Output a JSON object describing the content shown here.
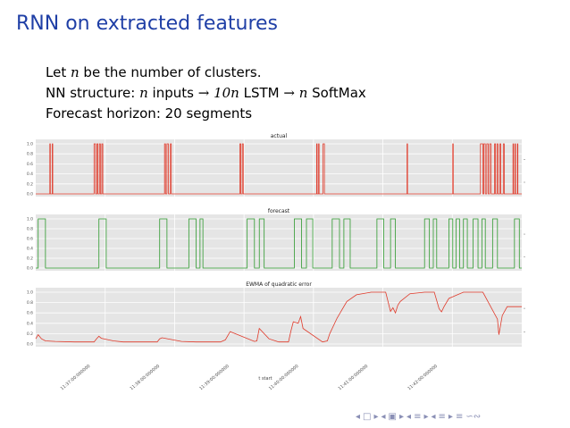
{
  "slide": {
    "title": "RNN on extracted features",
    "bullets": {
      "line1": {
        "pre": "Let ",
        "var": "n",
        "post": " be the number of clusters."
      },
      "line2": {
        "pre": "NN structure: ",
        "v1": "n",
        "t1": " inputs ",
        "arrow1": "→",
        "v2": "10n",
        "t2": " LSTM ",
        "arrow2": "→",
        "v3": "n",
        "t3": " SoftMax"
      },
      "line3": "Forecast horizon: 20 segments"
    }
  },
  "colors": {
    "title": "#1f3fa6",
    "actual": "#e03a2a",
    "forecast": "#2e9a2e",
    "ewma": "#e03a2a",
    "plot_bg": "#e5e5e5",
    "grid": "#ffffff"
  },
  "chart_data": [
    {
      "type": "line",
      "title": "actual",
      "ylim": [
        0,
        1
      ],
      "yticks": [
        "1.0",
        "0.8",
        "0.6",
        "0.4",
        "0.2",
        "0.0"
      ],
      "grid": true,
      "series": [
        {
          "step_segments": [
            [
              0.029,
              0.03
            ],
            [
              0.034,
              0.035
            ],
            [
              0.12,
              0.123
            ],
            [
              0.126,
              0.128
            ],
            [
              0.131,
              0.133
            ],
            [
              0.136,
              0.138
            ],
            [
              0.265,
              0.267
            ],
            [
              0.27,
              0.273
            ],
            [
              0.277,
              0.279
            ],
            [
              0.42,
              0.422
            ],
            [
              0.425,
              0.427
            ],
            [
              0.578,
              0.579
            ],
            [
              0.582,
              0.583
            ],
            [
              0.591,
              0.594
            ],
            [
              0.764,
              0.765
            ],
            [
              0.858,
              0.859
            ],
            [
              0.915,
              0.92
            ],
            [
              0.922,
              0.925
            ],
            [
              0.928,
              0.931
            ],
            [
              0.934,
              0.937
            ],
            [
              0.944,
              0.946
            ],
            [
              0.949,
              0.951
            ],
            [
              0.955,
              0.957
            ],
            [
              0.962,
              0.964
            ],
            [
              0.982,
              0.983
            ],
            [
              0.986,
              0.987
            ],
            [
              0.991,
              0.992
            ]
          ]
        }
      ]
    },
    {
      "type": "line",
      "title": "forecast",
      "ylim": [
        0,
        1
      ],
      "yticks": [
        "1.0",
        "0.8",
        "0.6",
        "0.4",
        "0.2",
        "0.0"
      ],
      "grid": true,
      "series": [
        {
          "step_segments": [
            [
              0.005,
              0.02
            ],
            [
              0.13,
              0.145
            ],
            [
              0.255,
              0.27
            ],
            [
              0.315,
              0.33
            ],
            [
              0.338,
              0.344
            ],
            [
              0.435,
              0.45
            ],
            [
              0.46,
              0.47
            ],
            [
              0.532,
              0.547
            ],
            [
              0.557,
              0.57
            ],
            [
              0.61,
              0.625
            ],
            [
              0.634,
              0.647
            ],
            [
              0.702,
              0.716
            ],
            [
              0.73,
              0.74
            ],
            [
              0.8,
              0.81
            ],
            [
              0.818,
              0.825
            ],
            [
              0.85,
              0.858
            ],
            [
              0.865,
              0.872
            ],
            [
              0.88,
              0.888
            ],
            [
              0.9,
              0.91
            ],
            [
              0.918,
              0.925
            ],
            [
              0.94,
              0.95
            ],
            [
              0.985,
              0.995
            ]
          ]
        }
      ]
    },
    {
      "type": "line",
      "title": "EWMA of quadratic error",
      "ylim": [
        0,
        1
      ],
      "yticks": [
        "1.0",
        "0.8",
        "0.6",
        "0.4",
        "0.2",
        "0.0"
      ],
      "grid": true,
      "xlabel": "t start",
      "xticks": [
        "11:37:00:000000",
        "11:38:00:000000",
        "11:39:00:000000",
        "11:40:00:000000",
        "11:41:00:000000",
        "11:42:00:000000"
      ],
      "series": [
        {
          "x": [
            0.0,
            0.005,
            0.012,
            0.02,
            0.04,
            0.08,
            0.12,
            0.125,
            0.13,
            0.135,
            0.16,
            0.18,
            0.2,
            0.25,
            0.255,
            0.26,
            0.3,
            0.33,
            0.34,
            0.38,
            0.39,
            0.4,
            0.45,
            0.455,
            0.46,
            0.48,
            0.5,
            0.52,
            0.525,
            0.53,
            0.54,
            0.545,
            0.55,
            0.59,
            0.6,
            0.605,
            0.62,
            0.64,
            0.66,
            0.69,
            0.72,
            0.73,
            0.735,
            0.74,
            0.745,
            0.75,
            0.77,
            0.8,
            0.82,
            0.83,
            0.835,
            0.84,
            0.85,
            0.88,
            0.92,
            0.95,
            0.953,
            0.96,
            0.97,
            1.0
          ],
          "y": [
            0.1,
            0.18,
            0.1,
            0.06,
            0.05,
            0.04,
            0.04,
            0.1,
            0.15,
            0.11,
            0.06,
            0.04,
            0.04,
            0.04,
            0.1,
            0.12,
            0.05,
            0.04,
            0.04,
            0.04,
            0.08,
            0.24,
            0.05,
            0.06,
            0.3,
            0.1,
            0.04,
            0.04,
            0.25,
            0.43,
            0.4,
            0.53,
            0.3,
            0.04,
            0.06,
            0.2,
            0.5,
            0.82,
            0.95,
            1.0,
            1.0,
            0.63,
            0.7,
            0.6,
            0.75,
            0.82,
            0.97,
            1.0,
            1.0,
            0.68,
            0.62,
            0.72,
            0.88,
            1.0,
            1.0,
            0.48,
            0.18,
            0.55,
            0.72,
            0.72
          ]
        }
      ]
    }
  ],
  "nav": {
    "icons": [
      "◂",
      "□",
      "▸",
      "◂",
      "▣",
      "▸",
      "◂",
      "≡",
      "▸",
      "◂",
      "≡",
      "▸",
      "≡",
      "∽∾"
    ]
  }
}
